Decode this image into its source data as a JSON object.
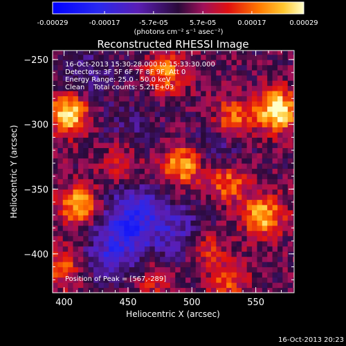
{
  "colorbar": {
    "ticks": [
      "-0.00029",
      "-0.00017",
      "-5.7e-05",
      "5.7e-05",
      "0.00017",
      "0.00029"
    ],
    "tick_values": [
      -0.00029,
      -0.00017,
      -5.7e-05,
      5.7e-05,
      0.00017,
      0.00029
    ],
    "range": [
      -0.00029,
      0.00029
    ],
    "units": "(photons cm⁻² s⁻¹ asec⁻²)"
  },
  "chart_data": {
    "type": "heatmap",
    "title": "Reconstructed RHESSI Image",
    "xlabel": "Heliocentric X (arcsec)",
    "ylabel": "Heliocentric Y (arcsec)",
    "xlim": [
      391,
      580
    ],
    "ylim": [
      -430,
      -243
    ],
    "xticks": [
      400,
      450,
      500,
      550
    ],
    "yticks": [
      -250,
      -300,
      -350,
      -400
    ],
    "annotations": [
      "16-Oct-2013 15:30:28.000 to 15:33:30.000",
      "Detectors: 3F 5F 6F 7F 8F 9F, Att 0",
      "Energy Range: 25.0 - 50.0 keV",
      "Clean    Total counts: 5.21E+03"
    ],
    "peak_label": "Position of Peak = [567,-289]",
    "peak": {
      "x": 567,
      "y": -289
    },
    "sources": [
      {
        "x": 567,
        "y": -289,
        "value": 0.00029
      },
      {
        "x": 404,
        "y": -292,
        "value": 0.00026
      },
      {
        "x": 493,
        "y": -331,
        "value": 0.00022
      },
      {
        "x": 480,
        "y": -260,
        "value": 0.00016
      },
      {
        "x": 532,
        "y": -296,
        "value": 0.00018
      },
      {
        "x": 528,
        "y": -344,
        "value": 0.00017
      },
      {
        "x": 411,
        "y": -362,
        "value": 0.00021
      },
      {
        "x": 556,
        "y": -370,
        "value": 0.00022
      },
      {
        "x": 444,
        "y": -328,
        "value": 0.00012
      },
      {
        "x": 510,
        "y": -395,
        "value": 0.00013
      },
      {
        "x": 528,
        "y": -420,
        "value": 0.00012
      },
      {
        "x": 400,
        "y": -410,
        "value": 0.00013
      },
      {
        "x": 470,
        "y": -420,
        "value": 9e-05
      }
    ],
    "minima": [
      {
        "x": 455,
        "y": -370,
        "value": -0.00018
      },
      {
        "x": 438,
        "y": -398,
        "value": -0.00015
      },
      {
        "x": 490,
        "y": -385,
        "value": -0.00012
      },
      {
        "x": 520,
        "y": -318,
        "value": -9e-05
      },
      {
        "x": 418,
        "y": -262,
        "value": -8e-05
      },
      {
        "x": 450,
        "y": -305,
        "value": -6e-05
      }
    ],
    "background_level": 2e-05
  },
  "footer": {
    "timestamp": "16-Oct-2013 20:23"
  }
}
